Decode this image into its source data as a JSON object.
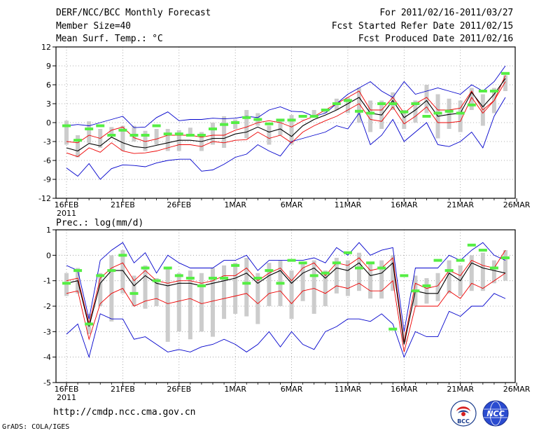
{
  "header": {
    "title": "DERF/NCC/BCC Monthly Forecast",
    "member_size": "Member Size=40",
    "var1_label": "Mean Surf. Temp.: °C",
    "period": "For 2011/02/16-2011/03/27",
    "fcst_started": "Fcst Started Refer Date 2011/02/15",
    "fcst_produced": "Fcst Produced Date 2011/02/16"
  },
  "footer": {
    "url": "http://cmdp.ncc.cma.gov.cn",
    "credit": "GrADS: COLA/IGES"
  },
  "logos": {
    "bcc": "BCC",
    "ncc": "NCC"
  },
  "colors": {
    "envelope": "#0000cc",
    "spread": "#ee0000",
    "ensemble_mean": "#000000",
    "box": "#cccccc",
    "observation": "#55ee44"
  },
  "chart_data": [
    {
      "type": "line",
      "title": "Mean Surf. Temp.: °C",
      "ylabel": "°C",
      "ylim": [
        -12,
        12
      ],
      "yticks": [
        "12",
        "9",
        "6",
        "3",
        "0",
        "-3",
        "-6",
        "-9",
        "-12"
      ],
      "xticks": [
        "16FEB",
        "21FEB",
        "26FEB",
        "1MAR",
        "6MAR",
        "11MAR",
        "16MAR",
        "21MAR",
        "26MAR"
      ],
      "x_sublabel": "2011",
      "days": 40,
      "series": [
        {
          "name": "max",
          "values": [
            -0.5,
            -0.3,
            -0.5,
            0.0,
            0.5,
            1.0,
            -0.8,
            -0.7,
            0.8,
            1.7,
            0.3,
            0.5,
            0.5,
            0.7,
            0.6,
            0.7,
            1.0,
            0.8,
            2.0,
            2.5,
            1.8,
            1.7,
            1.0,
            1.5,
            3.0,
            4.5,
            5.5,
            6.5,
            5.0,
            4.0,
            6.5,
            4.5,
            5.0,
            5.5,
            5.0,
            4.5,
            6.0,
            5.0,
            6.5,
            9.0
          ]
        },
        {
          "name": "upper",
          "values": [
            -3.0,
            -3.2,
            -2.0,
            -2.5,
            -1.2,
            -0.7,
            -2.4,
            -3.0,
            -2.6,
            -2.0,
            -2.0,
            -2.0,
            -2.3,
            -2.0,
            -2.0,
            -1.2,
            -0.7,
            0.0,
            0.3,
            0.0,
            -0.7,
            0.3,
            1.0,
            2.0,
            3.0,
            4.0,
            5.0,
            2.0,
            2.0,
            4.0,
            1.5,
            3.0,
            4.0,
            2.0,
            2.0,
            2.3,
            5.0,
            2.0,
            3.5,
            7.5
          ]
        },
        {
          "name": "mean",
          "values": [
            -4.0,
            -4.5,
            -3.3,
            -3.7,
            -2.3,
            -3.2,
            -3.8,
            -4.0,
            -3.6,
            -3.2,
            -2.8,
            -2.8,
            -3.0,
            -2.5,
            -2.5,
            -1.8,
            -1.5,
            -0.7,
            -1.5,
            -1.0,
            -2.2,
            -0.5,
            0.5,
            1.2,
            2.0,
            3.0,
            4.0,
            1.5,
            1.2,
            3.5,
            0.8,
            2.0,
            3.5,
            1.0,
            1.3,
            1.5,
            4.8,
            2.5,
            4.5,
            7.0
          ]
        },
        {
          "name": "lower",
          "values": [
            -4.8,
            -5.4,
            -4.0,
            -4.7,
            -3.2,
            -4.5,
            -4.9,
            -4.8,
            -4.5,
            -4.0,
            -3.5,
            -3.5,
            -3.8,
            -3.0,
            -3.2,
            -2.8,
            -2.7,
            -1.5,
            -2.5,
            -2.0,
            -3.2,
            -1.5,
            -0.5,
            0.3,
            1.0,
            2.0,
            3.0,
            0.5,
            0.2,
            2.5,
            -0.2,
            1.0,
            2.5,
            0.0,
            0.0,
            0.2,
            4.0,
            1.5,
            3.5,
            6.5
          ]
        },
        {
          "name": "min",
          "values": [
            -7.2,
            -8.5,
            -6.5,
            -9.0,
            -7.3,
            -6.7,
            -6.8,
            -7.0,
            -6.4,
            -6.0,
            -5.8,
            -5.8,
            -7.7,
            -7.5,
            -6.6,
            -5.5,
            -5.0,
            -3.5,
            -4.5,
            -5.3,
            -3.0,
            -2.5,
            -2.0,
            -1.5,
            -0.5,
            -1.0,
            1.5,
            -3.5,
            -2.0,
            0.5,
            -3.0,
            -1.5,
            0.0,
            -3.5,
            -3.8,
            -3.0,
            -1.5,
            -4.0,
            1.0,
            4.0
          ]
        },
        {
          "name": "box_top",
          "values": [
            0.3,
            -2.0,
            0.2,
            -1.0,
            -0.7,
            -0.5,
            -0.5,
            -1.3,
            -1.0,
            -1.0,
            -1.2,
            -0.8,
            -1.5,
            0.0,
            1.0,
            0.5,
            2.0,
            1.5,
            -0.5,
            0.3,
            1.2,
            0.5,
            2.0,
            2.0,
            3.8,
            4.0,
            5.5,
            3.5,
            3.5,
            4.8,
            2.0,
            3.5,
            6.0,
            4.5,
            3.8,
            3.5,
            5.5,
            4.5,
            5.5,
            7.5
          ]
        },
        {
          "name": "box_bottom",
          "values": [
            -3.5,
            -5.5,
            -3.2,
            -4.0,
            -2.0,
            -4.5,
            -3.0,
            -4.5,
            -3.5,
            -4.5,
            -4.5,
            -2.2,
            -4.5,
            -3.5,
            -4.0,
            -1.0,
            -2.5,
            -0.5,
            -3.5,
            -2.0,
            -3.5,
            0.5,
            1.2,
            1.5,
            2.0,
            1.5,
            0.0,
            -1.5,
            -1.0,
            2.0,
            -1.0,
            0.0,
            1.5,
            -2.5,
            -1.0,
            -1.5,
            2.0,
            -0.5,
            1.5,
            5.0
          ]
        },
        {
          "name": "observation",
          "values": [
            -0.5,
            -2.8,
            -1.0,
            -0.5,
            -2.0,
            -1.2,
            -2.0,
            -2.0,
            -0.5,
            -1.8,
            -1.8,
            -2.0,
            -2.0,
            -1.0,
            -0.3,
            0.0,
            0.8,
            0.5,
            -0.2,
            0.4,
            0.4,
            1.0,
            1.0,
            2.0,
            3.0,
            3.5,
            1.8,
            1.5,
            3.0,
            3.0,
            1.7,
            3.0,
            1.0,
            1.5,
            1.8,
            1.5,
            2.8,
            5.0,
            5.0,
            7.8
          ]
        }
      ]
    },
    {
      "type": "line",
      "title": "Prec.: log(mm/d)",
      "ylabel": "log(mm/d)",
      "ylim": [
        -5,
        1
      ],
      "yticks": [
        "1",
        "0",
        "-1",
        "-2",
        "-3",
        "-4",
        "-5"
      ],
      "xticks": [
        "16FEB",
        "21FEB",
        "26FEB",
        "1MAR",
        "6MAR",
        "11MAR",
        "16MAR",
        "21MAR",
        "26MAR"
      ],
      "x_sublabel": "2011",
      "days": 40,
      "series": [
        {
          "name": "max",
          "values": [
            -0.4,
            -0.6,
            -2.5,
            -0.2,
            0.2,
            0.5,
            -0.3,
            0.1,
            -0.7,
            0.0,
            -0.3,
            -0.5,
            -0.5,
            -0.5,
            -0.2,
            -0.2,
            0.0,
            -0.6,
            -0.2,
            -0.2,
            -0.2,
            -0.2,
            -0.1,
            -0.3,
            0.3,
            0.0,
            0.5,
            0.0,
            0.2,
            0.3,
            -3.0,
            -0.5,
            -0.5,
            -0.5,
            0.0,
            -0.2,
            0.2,
            0.5,
            0.0,
            -0.2
          ]
        },
        {
          "name": "upper",
          "values": [
            -1.0,
            -0.9,
            -2.7,
            -0.9,
            -0.5,
            -0.3,
            -1.0,
            -0.6,
            -1.0,
            -1.1,
            -1.0,
            -1.0,
            -1.1,
            -1.0,
            -0.8,
            -0.8,
            -0.5,
            -1.0,
            -0.7,
            -0.5,
            -1.0,
            -0.5,
            -0.3,
            -0.8,
            -0.3,
            -0.4,
            -0.1,
            -0.6,
            -0.5,
            -0.1,
            -3.4,
            -1.1,
            -1.3,
            -1.2,
            -0.6,
            -0.8,
            -0.2,
            -0.4,
            -0.5,
            0.2
          ]
        },
        {
          "name": "mean",
          "values": [
            -1.1,
            -1.0,
            -2.8,
            -1.1,
            -0.6,
            -0.6,
            -1.2,
            -0.8,
            -1.1,
            -1.2,
            -1.1,
            -1.1,
            -1.2,
            -1.1,
            -1.0,
            -0.9,
            -0.7,
            -1.1,
            -0.8,
            -0.6,
            -1.1,
            -0.7,
            -0.5,
            -0.9,
            -0.5,
            -0.6,
            -0.3,
            -0.8,
            -0.7,
            -0.3,
            -3.5,
            -1.4,
            -1.5,
            -1.5,
            -0.7,
            -1.0,
            -0.3,
            -0.5,
            -0.6,
            -0.7
          ]
        },
        {
          "name": "lower",
          "values": [
            -1.5,
            -1.4,
            -3.3,
            -1.9,
            -1.5,
            -1.3,
            -2.0,
            -1.8,
            -1.7,
            -1.9,
            -1.8,
            -1.7,
            -1.9,
            -1.8,
            -1.7,
            -1.6,
            -1.5,
            -1.9,
            -1.5,
            -1.4,
            -1.9,
            -1.4,
            -1.3,
            -1.5,
            -1.2,
            -1.3,
            -1.1,
            -1.4,
            -1.4,
            -1.0,
            -3.8,
            -2.0,
            -2.0,
            -2.0,
            -1.4,
            -1.7,
            -1.1,
            -1.3,
            -1.0,
            -0.7
          ]
        },
        {
          "name": "min",
          "values": [
            -3.1,
            -2.7,
            -4.0,
            -2.3,
            -2.5,
            -2.5,
            -3.3,
            -3.2,
            -3.5,
            -3.8,
            -3.7,
            -3.8,
            -3.6,
            -3.5,
            -3.3,
            -3.5,
            -3.8,
            -3.5,
            -3.0,
            -3.6,
            -3.0,
            -3.5,
            -3.7,
            -3.0,
            -2.8,
            -2.5,
            -2.5,
            -2.6,
            -2.3,
            -2.7,
            -4.0,
            -3.0,
            -3.2,
            -3.2,
            -2.2,
            -2.4,
            -2.0,
            -2.0,
            -1.5,
            -1.7
          ]
        },
        {
          "name": "box_top",
          "values": [
            -0.7,
            -0.5,
            -2.3,
            -0.7,
            0.0,
            0.2,
            -0.8,
            -0.4,
            -0.9,
            -0.5,
            -0.7,
            -0.6,
            -0.7,
            -0.5,
            -0.4,
            -0.3,
            -0.1,
            -0.7,
            -0.3,
            -0.2,
            -0.6,
            -0.3,
            -0.2,
            -0.6,
            -0.1,
            -0.2,
            0.1,
            -0.3,
            -0.2,
            0.0,
            -3.0,
            -0.8,
            -0.9,
            -0.7,
            -0.2,
            -0.4,
            0.0,
            0.1,
            -0.2,
            0.2
          ]
        },
        {
          "name": "box_bottom",
          "values": [
            -1.6,
            -1.5,
            -3.1,
            -2.0,
            -2.6,
            -1.5,
            -2.0,
            -2.1,
            -2.0,
            -3.4,
            -3.0,
            -3.3,
            -3.0,
            -3.2,
            -2.5,
            -2.3,
            -2.4,
            -2.7,
            -2.0,
            -2.0,
            -2.5,
            -1.8,
            -2.3,
            -2.0,
            -1.5,
            -1.6,
            -1.4,
            -1.7,
            -1.7,
            -1.4,
            -3.4,
            -2.0,
            -1.9,
            -1.8,
            -1.5,
            -1.6,
            -1.4,
            -1.4,
            -1.1,
            -1.0
          ]
        },
        {
          "name": "observation",
          "values": [
            -1.1,
            -0.6,
            -2.7,
            -0.8,
            -0.6,
            0.0,
            -1.5,
            -0.5,
            -1.0,
            -0.5,
            -0.8,
            -0.9,
            -1.2,
            -0.9,
            -0.9,
            -0.4,
            -1.1,
            -0.9,
            -0.6,
            -1.1,
            -0.2,
            -0.3,
            -0.8,
            -0.7,
            -0.3,
            0.1,
            -0.5,
            -0.3,
            -0.5,
            -2.9,
            -0.8,
            -1.4,
            -1.2,
            -0.2,
            -0.6,
            -0.2,
            0.4,
            0.2,
            -0.5,
            -0.1
          ]
        }
      ]
    }
  ]
}
